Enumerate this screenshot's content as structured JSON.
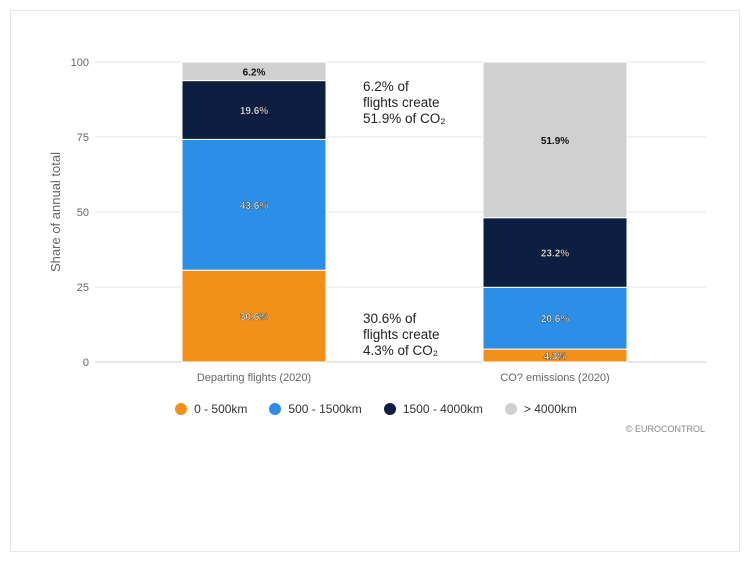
{
  "chart_data": {
    "type": "bar",
    "stacked": true,
    "ylabel": "Share of annual total",
    "ylim": [
      0,
      100
    ],
    "yticks": [
      "0",
      "25",
      "50",
      "75",
      "100"
    ],
    "categories": [
      "Departing flights (2020)",
      "CO? emissions (2020)"
    ],
    "series": [
      {
        "name": "0 - 500km",
        "color": "#f39019",
        "values": [
          30.6,
          4.3
        ],
        "labels": [
          "30.6%",
          "4.3%"
        ]
      },
      {
        "name": "500 - 1500km",
        "color": "#2b8fe8",
        "values": [
          43.6,
          20.6
        ],
        "labels": [
          "43.6%",
          "20.6%"
        ]
      },
      {
        "name": "1500 - 4000km",
        "color": "#0c1f40",
        "values": [
          19.6,
          23.2
        ],
        "labels": [
          "19.6%",
          "23.2%"
        ]
      },
      {
        "name": "> 4000km",
        "color": "#d0d0d0",
        "values": [
          6.2,
          51.9
        ],
        "labels": [
          "6.2%",
          "51.9%"
        ]
      }
    ],
    "annotations": [
      {
        "lines": [
          "6.2% of",
          "flights create",
          "51.9% of CO₂"
        ]
      },
      {
        "lines": [
          "30.6% of",
          "flights create",
          "4.3% of CO₂"
        ]
      }
    ],
    "grid": true,
    "legend_position": "bottom",
    "credit": "© EUROCONTROL"
  }
}
